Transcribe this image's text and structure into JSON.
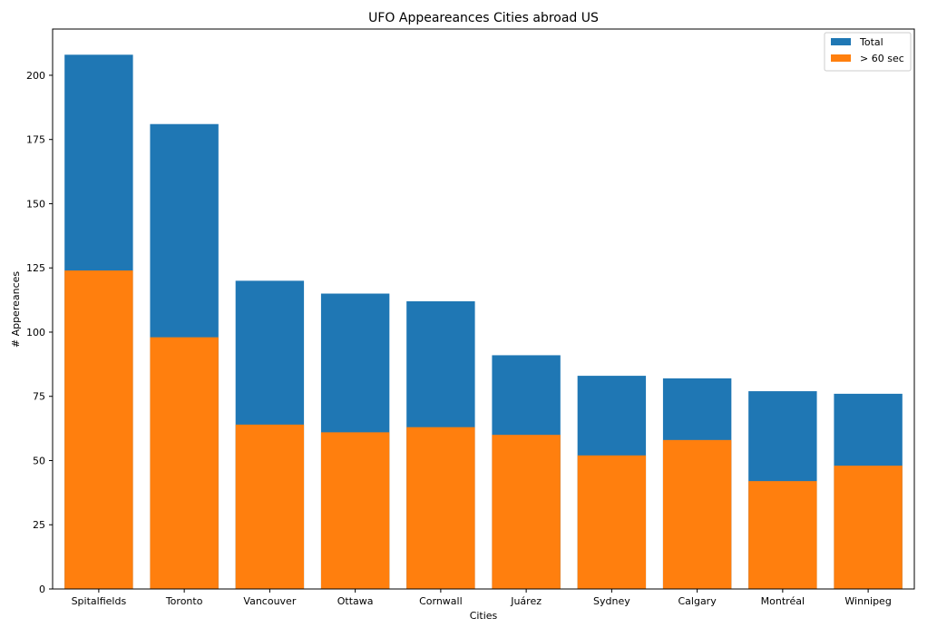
{
  "chart_data": {
    "type": "bar",
    "title": "UFO Appeareances Cities abroad US",
    "xlabel": "Cities",
    "ylabel": "# Appereances",
    "ylim": [
      0,
      218
    ],
    "yticks": [
      0,
      25,
      50,
      75,
      100,
      125,
      150,
      175,
      200
    ],
    "grid": false,
    "legend_position": "top-right",
    "categories": [
      "Spitalfields",
      "Toronto",
      "Vancouver",
      "Ottawa",
      "Cornwall",
      "Juárez",
      "Sydney",
      "Calgary",
      "Montréal",
      "Winnipeg"
    ],
    "series": [
      {
        "name": "Total",
        "color": "#1f77b4",
        "values": [
          208,
          181,
          120,
          115,
          112,
          91,
          83,
          82,
          77,
          76
        ]
      },
      {
        "name": "> 60 sec",
        "color": "#ff7f0e",
        "values": [
          124,
          98,
          64,
          61,
          63,
          60,
          52,
          58,
          42,
          48
        ]
      }
    ]
  }
}
